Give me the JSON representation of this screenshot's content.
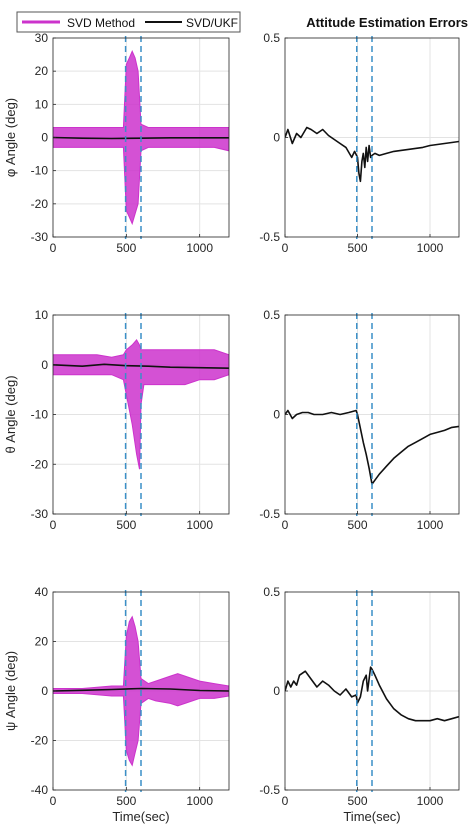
{
  "figure": {
    "title": "Attitude Estimation Errors",
    "legend": {
      "placement": "top-left",
      "entries": [
        {
          "label": "SVD Method",
          "color": "#cc33cc"
        },
        {
          "label": "SVD/UKF",
          "color": "#111111"
        }
      ]
    },
    "highlight_color": "#3a8fc7"
  },
  "chart_data": [
    {
      "type": "line",
      "row": 0,
      "col": 0,
      "xlabel": "",
      "ylabel": "φ Angle (deg)",
      "xlim": [
        0,
        1200
      ],
      "ylim": [
        -30,
        30
      ],
      "xticks": [
        0,
        500,
        1000
      ],
      "yticks": [
        -30,
        -20,
        -10,
        0,
        10,
        20,
        30
      ],
      "ytick_labels": [
        "-30",
        "-20",
        "-10",
        "0",
        "10",
        "20",
        "30"
      ],
      "grid": true,
      "highlight_x": [
        495,
        600
      ],
      "series": [
        {
          "name": "SVD Method",
          "envelope": true,
          "x": [
            0,
            100,
            200,
            300,
            400,
            480,
            500,
            520,
            540,
            560,
            580,
            600,
            650,
            700,
            800,
            900,
            1000,
            1100,
            1200
          ],
          "upper": [
            3,
            3,
            3,
            3,
            3,
            3,
            22,
            24,
            26,
            24,
            20,
            4,
            3,
            3,
            3,
            3,
            3,
            3,
            3
          ],
          "lower": [
            -3,
            -3,
            -3,
            -3,
            -3,
            -3,
            -22,
            -24,
            -26,
            -23,
            -20,
            -4,
            -3,
            -3,
            -3,
            -3,
            -3,
            -3,
            -4
          ]
        },
        {
          "name": "SVD/UKF",
          "x": [
            0,
            200,
            400,
            600,
            800,
            1000,
            1200
          ],
          "y": [
            0,
            -0.2,
            -0.3,
            -0.2,
            -0.1,
            -0.1,
            -0.1
          ]
        }
      ]
    },
    {
      "type": "line",
      "row": 0,
      "col": 1,
      "xlabel": "",
      "ylabel": "",
      "xlim": [
        0,
        1200
      ],
      "ylim": [
        -0.5,
        0.5
      ],
      "xticks": [
        0,
        500,
        1000
      ],
      "yticks": [
        -0.5,
        0,
        0.5
      ],
      "ytick_labels": [
        "-0.5",
        "0",
        "0.5"
      ],
      "grid": true,
      "highlight_x": [
        495,
        600
      ],
      "series": [
        {
          "name": "SVD/UKF",
          "x": [
            0,
            20,
            50,
            80,
            110,
            150,
            180,
            220,
            260,
            300,
            340,
            380,
            420,
            460,
            480,
            500,
            510,
            520,
            530,
            540,
            550,
            560,
            570,
            580,
            590,
            600,
            620,
            650,
            700,
            750,
            800,
            850,
            900,
            950,
            1000,
            1050,
            1100,
            1150,
            1200
          ],
          "y": [
            0,
            0.04,
            -0.03,
            0.02,
            0.0,
            0.05,
            0.04,
            0.02,
            0.04,
            0.01,
            -0.01,
            -0.03,
            -0.05,
            -0.1,
            -0.07,
            -0.1,
            -0.18,
            -0.22,
            -0.12,
            -0.08,
            -0.15,
            -0.05,
            -0.12,
            -0.04,
            -0.1,
            -0.09,
            -0.08,
            -0.09,
            -0.08,
            -0.07,
            -0.065,
            -0.06,
            -0.055,
            -0.05,
            -0.04,
            -0.035,
            -0.03,
            -0.025,
            -0.02
          ]
        }
      ]
    },
    {
      "type": "line",
      "row": 1,
      "col": 0,
      "xlabel": "",
      "ylabel": "θ Angle (deg)",
      "xlim": [
        0,
        1200
      ],
      "ylim": [
        -30,
        10
      ],
      "xticks": [
        0,
        500,
        1000
      ],
      "yticks": [
        -30,
        -20,
        -10,
        0,
        10
      ],
      "ytick_labels": [
        "-30",
        "-20",
        "-10",
        "0",
        "10"
      ],
      "grid": true,
      "highlight_x": [
        495,
        600
      ],
      "series": [
        {
          "name": "SVD Method",
          "envelope": true,
          "x": [
            0,
            100,
            200,
            300,
            400,
            480,
            500,
            540,
            570,
            590,
            600,
            620,
            700,
            800,
            900,
            1000,
            1100,
            1200
          ],
          "upper": [
            2,
            2,
            2,
            2,
            1.5,
            2,
            3,
            4,
            5,
            4,
            3,
            3,
            3,
            3,
            3,
            3,
            3,
            2
          ],
          "lower": [
            -2,
            -2,
            -2,
            -2,
            -2,
            -3,
            -6,
            -12,
            -18,
            -21,
            -8,
            -4,
            -4,
            -4,
            -4,
            -3,
            -3,
            -2
          ]
        },
        {
          "name": "SVD/UKF",
          "x": [
            0,
            200,
            350,
            500,
            650,
            800,
            1000,
            1200
          ],
          "y": [
            0,
            -0.3,
            0.1,
            -0.2,
            -0.3,
            -0.5,
            -0.6,
            -0.7
          ]
        }
      ]
    },
    {
      "type": "line",
      "row": 1,
      "col": 1,
      "xlabel": "",
      "ylabel": "",
      "xlim": [
        0,
        1200
      ],
      "ylim": [
        -0.5,
        0.5
      ],
      "xticks": [
        0,
        500,
        1000
      ],
      "yticks": [
        -0.5,
        0,
        0.5
      ],
      "ytick_labels": [
        "-0.5",
        "0",
        "0.5"
      ],
      "grid": true,
      "highlight_x": [
        495,
        600
      ],
      "series": [
        {
          "name": "SVD/UKF",
          "x": [
            0,
            20,
            50,
            80,
            120,
            160,
            200,
            260,
            320,
            380,
            440,
            490,
            500,
            520,
            540,
            560,
            580,
            600,
            620,
            650,
            700,
            750,
            800,
            850,
            900,
            950,
            1000,
            1050,
            1100,
            1150,
            1200
          ],
          "y": [
            0,
            0.02,
            -0.02,
            0.0,
            0.01,
            0.01,
            0.0,
            0.0,
            0.01,
            0.0,
            0.01,
            0.02,
            0.0,
            -0.07,
            -0.14,
            -0.2,
            -0.27,
            -0.35,
            -0.33,
            -0.3,
            -0.26,
            -0.22,
            -0.19,
            -0.16,
            -0.14,
            -0.12,
            -0.1,
            -0.09,
            -0.08,
            -0.065,
            -0.06
          ]
        }
      ]
    },
    {
      "type": "line",
      "row": 2,
      "col": 0,
      "xlabel": "Time(sec)",
      "ylabel": "ψ Angle (deg)",
      "xlim": [
        0,
        1200
      ],
      "ylim": [
        -40,
        40
      ],
      "xticks": [
        0,
        500,
        1000
      ],
      "yticks": [
        -40,
        -20,
        0,
        20,
        40
      ],
      "ytick_labels": [
        "-40",
        "-20",
        "0",
        "20",
        "40"
      ],
      "grid": true,
      "highlight_x": [
        495,
        600
      ],
      "series": [
        {
          "name": "SVD Method",
          "envelope": true,
          "x": [
            0,
            100,
            200,
            300,
            400,
            480,
            500,
            520,
            540,
            560,
            580,
            600,
            650,
            700,
            800,
            850,
            900,
            1000,
            1100,
            1200
          ],
          "upper": [
            1,
            1,
            1,
            1.5,
            2,
            2,
            22,
            28,
            30,
            26,
            20,
            5,
            3,
            4,
            6,
            7,
            6,
            4,
            3,
            2
          ],
          "lower": [
            -1,
            -1,
            -1,
            -1.5,
            -2,
            -2,
            -24,
            -28,
            -30,
            -25,
            -20,
            -5,
            -3,
            -4,
            -5,
            -6,
            -5,
            -3,
            -3,
            -2
          ]
        },
        {
          "name": "SVD/UKF",
          "x": [
            0,
            200,
            400,
            600,
            800,
            1000,
            1200
          ],
          "y": [
            0,
            0.3,
            0.6,
            1.0,
            0.8,
            0.2,
            0.0
          ]
        }
      ]
    },
    {
      "type": "line",
      "row": 2,
      "col": 1,
      "xlabel": "Time(sec)",
      "ylabel": "",
      "xlim": [
        0,
        1200
      ],
      "ylim": [
        -0.5,
        0.5
      ],
      "xticks": [
        0,
        500,
        1000
      ],
      "yticks": [
        -0.5,
        0,
        0.5
      ],
      "ytick_labels": [
        "-0.5",
        "0",
        "0.5"
      ],
      "grid": true,
      "highlight_x": [
        495,
        600
      ],
      "series": [
        {
          "name": "SVD/UKF",
          "x": [
            0,
            20,
            40,
            60,
            80,
            100,
            140,
            180,
            220,
            260,
            300,
            340,
            380,
            420,
            460,
            490,
            500,
            520,
            540,
            560,
            570,
            590,
            600,
            620,
            650,
            700,
            750,
            800,
            850,
            900,
            950,
            1000,
            1050,
            1100,
            1150,
            1200
          ],
          "y": [
            0,
            0.05,
            0.02,
            0.05,
            0.03,
            0.08,
            0.1,
            0.06,
            0.02,
            0.05,
            0.03,
            0.0,
            -0.02,
            0.01,
            -0.03,
            -0.02,
            -0.06,
            -0.03,
            0.05,
            0.08,
            0.0,
            0.12,
            0.11,
            0.08,
            0.03,
            -0.04,
            -0.09,
            -0.12,
            -0.14,
            -0.15,
            -0.15,
            -0.15,
            -0.14,
            -0.15,
            -0.14,
            -0.13
          ]
        }
      ]
    }
  ]
}
